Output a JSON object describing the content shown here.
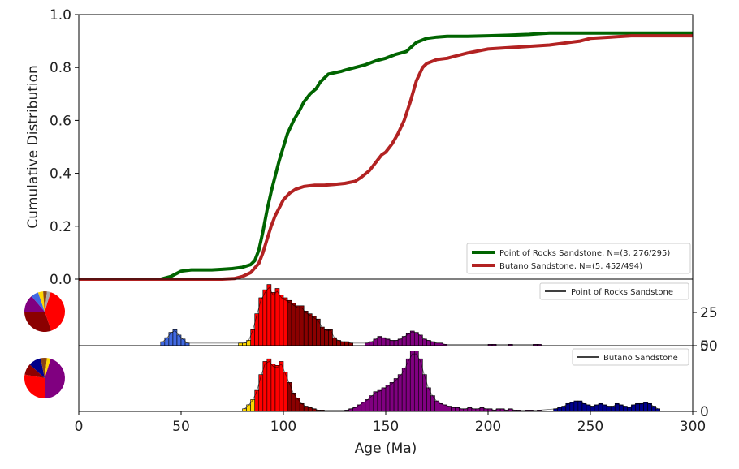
{
  "chart_data": [
    {
      "type": "line",
      "panel": "cdf",
      "ylabel": "Cumulative Distribution",
      "xlabel": "Age (Ma)",
      "xlim": [
        0,
        300
      ],
      "ylim": [
        0,
        1
      ],
      "yticks": [
        "0.0",
        "0.2",
        "0.4",
        "0.6",
        "0.8",
        "1.0"
      ],
      "xticks": [
        "0",
        "50",
        "100",
        "150",
        "200",
        "250",
        "300"
      ],
      "legend_position": "bottom-right",
      "series": [
        {
          "name": "Point of Rocks Sandstone, N=(3, 276/295)",
          "color": "#006400",
          "x": [
            0,
            40,
            45,
            50,
            55,
            60,
            65,
            70,
            75,
            80,
            84,
            86,
            88,
            90,
            92,
            94,
            96,
            98,
            100,
            102,
            105,
            108,
            110,
            113,
            116,
            118,
            120,
            122,
            125,
            128,
            130,
            135,
            140,
            145,
            150,
            155,
            160,
            165,
            170,
            175,
            180,
            190,
            200,
            210,
            220,
            225,
            230,
            240,
            250,
            260,
            270,
            280,
            290,
            300
          ],
          "y": [
            0,
            0.0,
            0.01,
            0.03,
            0.035,
            0.035,
            0.035,
            0.037,
            0.04,
            0.045,
            0.055,
            0.07,
            0.11,
            0.18,
            0.26,
            0.33,
            0.39,
            0.45,
            0.5,
            0.55,
            0.6,
            0.64,
            0.67,
            0.7,
            0.72,
            0.745,
            0.76,
            0.775,
            0.78,
            0.785,
            0.79,
            0.8,
            0.81,
            0.825,
            0.835,
            0.85,
            0.86,
            0.895,
            0.91,
            0.915,
            0.918,
            0.918,
            0.92,
            0.922,
            0.925,
            0.928,
            0.93,
            0.93,
            0.93,
            0.93,
            0.93,
            0.93,
            0.93,
            0.93
          ]
        },
        {
          "name": "Butano Sandstone, N=(5, 452/494)",
          "color": "#b22222",
          "x": [
            0,
            70,
            76,
            80,
            84,
            88,
            90,
            92,
            94,
            96,
            98,
            100,
            103,
            106,
            110,
            115,
            120,
            125,
            130,
            135,
            138,
            142,
            145,
            148,
            150,
            153,
            156,
            159,
            162,
            165,
            168,
            170,
            175,
            180,
            185,
            190,
            200,
            210,
            220,
            230,
            235,
            240,
            245,
            250,
            260,
            270,
            280,
            290,
            300
          ],
          "y": [
            0,
            0.0,
            0.002,
            0.01,
            0.025,
            0.06,
            0.1,
            0.15,
            0.2,
            0.24,
            0.27,
            0.3,
            0.325,
            0.34,
            0.35,
            0.355,
            0.355,
            0.358,
            0.362,
            0.37,
            0.385,
            0.41,
            0.44,
            0.47,
            0.48,
            0.51,
            0.55,
            0.6,
            0.67,
            0.75,
            0.8,
            0.815,
            0.83,
            0.835,
            0.845,
            0.855,
            0.87,
            0.875,
            0.88,
            0.885,
            0.89,
            0.895,
            0.9,
            0.91,
            0.915,
            0.92,
            0.92,
            0.92,
            0.92
          ]
        }
      ]
    },
    {
      "type": "bar",
      "panel": "hist-1",
      "legend": "Point of Rocks Sandstone",
      "xlim": [
        0,
        300
      ],
      "ylim": [
        0,
        50
      ],
      "yticks": [
        "0",
        "25"
      ],
      "bin_width": 2,
      "bins": [
        {
          "x": 40,
          "v": 3,
          "c": "#4169e1"
        },
        {
          "x": 42,
          "v": 6,
          "c": "#4169e1"
        },
        {
          "x": 44,
          "v": 10,
          "c": "#4169e1"
        },
        {
          "x": 46,
          "v": 12,
          "c": "#4169e1"
        },
        {
          "x": 48,
          "v": 8,
          "c": "#4169e1"
        },
        {
          "x": 50,
          "v": 5,
          "c": "#4169e1"
        },
        {
          "x": 52,
          "v": 2,
          "c": "#4169e1"
        },
        {
          "x": 78,
          "v": 2,
          "c": "#ffd700"
        },
        {
          "x": 80,
          "v": 2,
          "c": "#ffd700"
        },
        {
          "x": 82,
          "v": 4,
          "c": "#ffd700"
        },
        {
          "x": 84,
          "v": 12,
          "c": "#ff0000"
        },
        {
          "x": 86,
          "v": 24,
          "c": "#ff0000"
        },
        {
          "x": 88,
          "v": 36,
          "c": "#ff0000"
        },
        {
          "x": 90,
          "v": 42,
          "c": "#ff0000"
        },
        {
          "x": 92,
          "v": 46,
          "c": "#ff0000"
        },
        {
          "x": 94,
          "v": 40,
          "c": "#ff0000"
        },
        {
          "x": 96,
          "v": 43,
          "c": "#ff0000"
        },
        {
          "x": 98,
          "v": 38,
          "c": "#ff0000"
        },
        {
          "x": 100,
          "v": 36,
          "c": "#ff0000"
        },
        {
          "x": 102,
          "v": 34,
          "c": "#8b0000"
        },
        {
          "x": 104,
          "v": 32,
          "c": "#8b0000"
        },
        {
          "x": 106,
          "v": 30,
          "c": "#8b0000"
        },
        {
          "x": 108,
          "v": 30,
          "c": "#8b0000"
        },
        {
          "x": 110,
          "v": 26,
          "c": "#8b0000"
        },
        {
          "x": 112,
          "v": 24,
          "c": "#8b0000"
        },
        {
          "x": 114,
          "v": 22,
          "c": "#8b0000"
        },
        {
          "x": 116,
          "v": 20,
          "c": "#8b0000"
        },
        {
          "x": 118,
          "v": 14,
          "c": "#8b0000"
        },
        {
          "x": 120,
          "v": 12,
          "c": "#8b0000"
        },
        {
          "x": 122,
          "v": 12,
          "c": "#8b0000"
        },
        {
          "x": 124,
          "v": 6,
          "c": "#8b0000"
        },
        {
          "x": 126,
          "v": 4,
          "c": "#8b0000"
        },
        {
          "x": 128,
          "v": 3,
          "c": "#8b0000"
        },
        {
          "x": 130,
          "v": 3,
          "c": "#8b0000"
        },
        {
          "x": 132,
          "v": 2,
          "c": "#8b0000"
        },
        {
          "x": 140,
          "v": 2,
          "c": "#800080"
        },
        {
          "x": 142,
          "v": 3,
          "c": "#800080"
        },
        {
          "x": 144,
          "v": 5,
          "c": "#800080"
        },
        {
          "x": 146,
          "v": 7,
          "c": "#800080"
        },
        {
          "x": 148,
          "v": 6,
          "c": "#800080"
        },
        {
          "x": 150,
          "v": 5,
          "c": "#800080"
        },
        {
          "x": 152,
          "v": 4,
          "c": "#800080"
        },
        {
          "x": 154,
          "v": 4,
          "c": "#800080"
        },
        {
          "x": 156,
          "v": 5,
          "c": "#800080"
        },
        {
          "x": 158,
          "v": 7,
          "c": "#800080"
        },
        {
          "x": 160,
          "v": 9,
          "c": "#800080"
        },
        {
          "x": 162,
          "v": 11,
          "c": "#800080"
        },
        {
          "x": 164,
          "v": 10,
          "c": "#800080"
        },
        {
          "x": 166,
          "v": 8,
          "c": "#800080"
        },
        {
          "x": 168,
          "v": 5,
          "c": "#800080"
        },
        {
          "x": 170,
          "v": 4,
          "c": "#800080"
        },
        {
          "x": 172,
          "v": 3,
          "c": "#800080"
        },
        {
          "x": 174,
          "v": 2,
          "c": "#800080"
        },
        {
          "x": 176,
          "v": 2,
          "c": "#800080"
        },
        {
          "x": 178,
          "v": 1,
          "c": "#800080"
        },
        {
          "x": 200,
          "v": 1,
          "c": "#800080"
        },
        {
          "x": 202,
          "v": 1,
          "c": "#800080"
        },
        {
          "x": 210,
          "v": 1,
          "c": "#800080"
        },
        {
          "x": 222,
          "v": 1,
          "c": "#800080"
        },
        {
          "x": 224,
          "v": 1,
          "c": "#800080"
        }
      ],
      "pie": [
        {
          "v": 40,
          "c": "#ff0000"
        },
        {
          "v": 30,
          "c": "#8b0000"
        },
        {
          "v": 14,
          "c": "#800080"
        },
        {
          "v": 6,
          "c": "#4169e1"
        },
        {
          "v": 4,
          "c": "#ffd700"
        },
        {
          "v": 3,
          "c": "#8b4513"
        },
        {
          "v": 3,
          "c": "#a9a9a9"
        }
      ]
    },
    {
      "type": "bar",
      "panel": "hist-2",
      "legend": "Butano Sandstone",
      "xlim": [
        0,
        300
      ],
      "ylim": [
        0,
        50
      ],
      "yticks": [
        "0",
        "50"
      ],
      "bin_width": 2,
      "bins": [
        {
          "x": 80,
          "v": 2,
          "c": "#ffd700"
        },
        {
          "x": 82,
          "v": 5,
          "c": "#ffd700"
        },
        {
          "x": 84,
          "v": 9,
          "c": "#ffd700"
        },
        {
          "x": 86,
          "v": 16,
          "c": "#ff0000"
        },
        {
          "x": 88,
          "v": 28,
          "c": "#ff0000"
        },
        {
          "x": 90,
          "v": 38,
          "c": "#ff0000"
        },
        {
          "x": 92,
          "v": 40,
          "c": "#ff0000"
        },
        {
          "x": 94,
          "v": 36,
          "c": "#ff0000"
        },
        {
          "x": 96,
          "v": 35,
          "c": "#ff0000"
        },
        {
          "x": 98,
          "v": 38,
          "c": "#ff0000"
        },
        {
          "x": 100,
          "v": 30,
          "c": "#ff0000"
        },
        {
          "x": 102,
          "v": 22,
          "c": "#8b0000"
        },
        {
          "x": 104,
          "v": 14,
          "c": "#8b0000"
        },
        {
          "x": 106,
          "v": 10,
          "c": "#8b0000"
        },
        {
          "x": 108,
          "v": 6,
          "c": "#8b0000"
        },
        {
          "x": 110,
          "v": 4,
          "c": "#8b0000"
        },
        {
          "x": 112,
          "v": 3,
          "c": "#8b0000"
        },
        {
          "x": 114,
          "v": 2,
          "c": "#8b0000"
        },
        {
          "x": 116,
          "v": 1,
          "c": "#8b0000"
        },
        {
          "x": 118,
          "v": 1,
          "c": "#8b0000"
        },
        {
          "x": 130,
          "v": 1,
          "c": "#800080"
        },
        {
          "x": 132,
          "v": 2,
          "c": "#800080"
        },
        {
          "x": 134,
          "v": 3,
          "c": "#800080"
        },
        {
          "x": 136,
          "v": 5,
          "c": "#800080"
        },
        {
          "x": 138,
          "v": 7,
          "c": "#800080"
        },
        {
          "x": 140,
          "v": 9,
          "c": "#800080"
        },
        {
          "x": 142,
          "v": 12,
          "c": "#800080"
        },
        {
          "x": 144,
          "v": 15,
          "c": "#800080"
        },
        {
          "x": 146,
          "v": 16,
          "c": "#800080"
        },
        {
          "x": 148,
          "v": 18,
          "c": "#800080"
        },
        {
          "x": 150,
          "v": 20,
          "c": "#800080"
        },
        {
          "x": 152,
          "v": 22,
          "c": "#800080"
        },
        {
          "x": 154,
          "v": 25,
          "c": "#800080"
        },
        {
          "x": 156,
          "v": 28,
          "c": "#800080"
        },
        {
          "x": 158,
          "v": 33,
          "c": "#800080"
        },
        {
          "x": 160,
          "v": 40,
          "c": "#800080"
        },
        {
          "x": 162,
          "v": 46,
          "c": "#800080"
        },
        {
          "x": 164,
          "v": 46,
          "c": "#800080"
        },
        {
          "x": 166,
          "v": 40,
          "c": "#800080"
        },
        {
          "x": 168,
          "v": 28,
          "c": "#800080"
        },
        {
          "x": 170,
          "v": 18,
          "c": "#800080"
        },
        {
          "x": 172,
          "v": 12,
          "c": "#800080"
        },
        {
          "x": 174,
          "v": 8,
          "c": "#800080"
        },
        {
          "x": 176,
          "v": 6,
          "c": "#800080"
        },
        {
          "x": 178,
          "v": 5,
          "c": "#800080"
        },
        {
          "x": 180,
          "v": 4,
          "c": "#800080"
        },
        {
          "x": 182,
          "v": 3,
          "c": "#800080"
        },
        {
          "x": 184,
          "v": 3,
          "c": "#800080"
        },
        {
          "x": 186,
          "v": 2,
          "c": "#800080"
        },
        {
          "x": 188,
          "v": 2,
          "c": "#800080"
        },
        {
          "x": 190,
          "v": 3,
          "c": "#800080"
        },
        {
          "x": 192,
          "v": 2,
          "c": "#800080"
        },
        {
          "x": 194,
          "v": 2,
          "c": "#800080"
        },
        {
          "x": 196,
          "v": 3,
          "c": "#800080"
        },
        {
          "x": 198,
          "v": 2,
          "c": "#800080"
        },
        {
          "x": 200,
          "v": 2,
          "c": "#800080"
        },
        {
          "x": 202,
          "v": 1,
          "c": "#800080"
        },
        {
          "x": 204,
          "v": 2,
          "c": "#800080"
        },
        {
          "x": 206,
          "v": 2,
          "c": "#800080"
        },
        {
          "x": 208,
          "v": 1,
          "c": "#800080"
        },
        {
          "x": 210,
          "v": 2,
          "c": "#800080"
        },
        {
          "x": 212,
          "v": 1,
          "c": "#800080"
        },
        {
          "x": 214,
          "v": 1,
          "c": "#800080"
        },
        {
          "x": 218,
          "v": 1,
          "c": "#800080"
        },
        {
          "x": 220,
          "v": 1,
          "c": "#800080"
        },
        {
          "x": 224,
          "v": 1,
          "c": "#800080"
        },
        {
          "x": 232,
          "v": 2,
          "c": "#00008b"
        },
        {
          "x": 234,
          "v": 3,
          "c": "#00008b"
        },
        {
          "x": 236,
          "v": 4,
          "c": "#00008b"
        },
        {
          "x": 238,
          "v": 6,
          "c": "#00008b"
        },
        {
          "x": 240,
          "v": 7,
          "c": "#00008b"
        },
        {
          "x": 242,
          "v": 8,
          "c": "#00008b"
        },
        {
          "x": 244,
          "v": 8,
          "c": "#00008b"
        },
        {
          "x": 246,
          "v": 6,
          "c": "#00008b"
        },
        {
          "x": 248,
          "v": 5,
          "c": "#00008b"
        },
        {
          "x": 250,
          "v": 4,
          "c": "#00008b"
        },
        {
          "x": 252,
          "v": 5,
          "c": "#00008b"
        },
        {
          "x": 254,
          "v": 6,
          "c": "#00008b"
        },
        {
          "x": 256,
          "v": 5,
          "c": "#00008b"
        },
        {
          "x": 258,
          "v": 4,
          "c": "#00008b"
        },
        {
          "x": 260,
          "v": 4,
          "c": "#00008b"
        },
        {
          "x": 262,
          "v": 6,
          "c": "#00008b"
        },
        {
          "x": 264,
          "v": 5,
          "c": "#00008b"
        },
        {
          "x": 266,
          "v": 4,
          "c": "#00008b"
        },
        {
          "x": 268,
          "v": 3,
          "c": "#00008b"
        },
        {
          "x": 270,
          "v": 5,
          "c": "#00008b"
        },
        {
          "x": 272,
          "v": 6,
          "c": "#00008b"
        },
        {
          "x": 274,
          "v": 6,
          "c": "#00008b"
        },
        {
          "x": 276,
          "v": 7,
          "c": "#00008b"
        },
        {
          "x": 278,
          "v": 6,
          "c": "#00008b"
        },
        {
          "x": 280,
          "v": 4,
          "c": "#00008b"
        },
        {
          "x": 282,
          "v": 2,
          "c": "#00008b"
        }
      ],
      "pie": [
        {
          "v": 45,
          "c": "#800080"
        },
        {
          "v": 28,
          "c": "#ff0000"
        },
        {
          "v": 9,
          "c": "#8b0000"
        },
        {
          "v": 10,
          "c": "#00008b"
        },
        {
          "v": 5,
          "c": "#8b4513"
        },
        {
          "v": 3,
          "c": "#ffd700"
        }
      ]
    }
  ]
}
